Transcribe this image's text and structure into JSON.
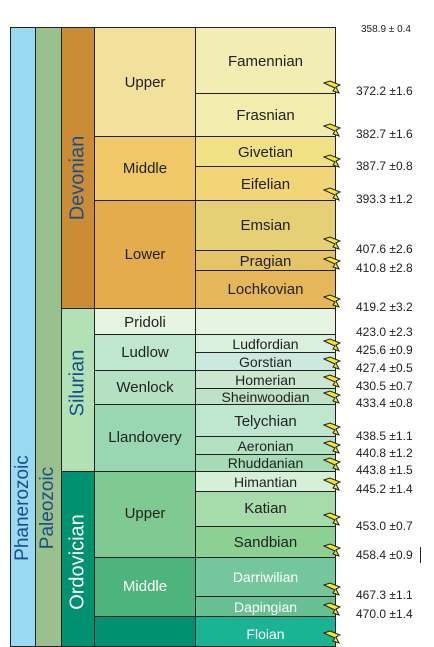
{
  "eonothem": "Phanerozoic",
  "erathem": "Paleozoic",
  "systems": [
    {
      "name": "Devonian",
      "color": "#cb8c37"
    },
    {
      "name": "Silurian",
      "color": "#b3e1b6"
    },
    {
      "name": "Ordovician",
      "color": "#009270"
    }
  ],
  "series": [
    {
      "name": "Upper",
      "color": "#f1e19d"
    },
    {
      "name": "Middle",
      "color": "#f1c868"
    },
    {
      "name": "Lower",
      "color": "#e5ac4d"
    },
    {
      "name": "Pridoli",
      "color": "#e6f5e1"
    },
    {
      "name": "Ludlow",
      "color": "#bfe6cf"
    },
    {
      "name": "Wenlock",
      "color": "#b3e1c2"
    },
    {
      "name": "Llandovery",
      "color": "#99d7b3"
    },
    {
      "name": "Upper",
      "color": "#7fca93"
    },
    {
      "name": "Middle",
      "color": "#4db47e"
    }
  ],
  "stages": [
    {
      "name": "Famennian",
      "color": "#f2edb3"
    },
    {
      "name": "Frasnian",
      "color": "#f2edad"
    },
    {
      "name": "Givetian",
      "color": "#f1e185"
    },
    {
      "name": "Eifelian",
      "color": "#f1d576"
    },
    {
      "name": "Emsian",
      "color": "#e5d075"
    },
    {
      "name": "Pragian",
      "color": "#e5c468"
    },
    {
      "name": "Lochkovian",
      "color": "#e5b75a"
    },
    {
      "name": "",
      "color": "#e6f5e1"
    },
    {
      "name": "Ludfordian",
      "color": "#d9f0df"
    },
    {
      "name": "Gorstian",
      "color": "#cce9df"
    },
    {
      "name": "Homerian",
      "color": "#cce6d0"
    },
    {
      "name": "Sheinwoodian",
      "color": "#bfe1c6"
    },
    {
      "name": "Telychian",
      "color": "#bfe6cf"
    },
    {
      "name": "Aeronian",
      "color": "#b3e1c2"
    },
    {
      "name": "Rhuddanian",
      "color": "#a6dcb5"
    },
    {
      "name": "Himantian",
      "color": "#d6f0d8"
    },
    {
      "name": "Katian",
      "color": "#a6dbab"
    },
    {
      "name": "Sandbian",
      "color": "#8cd094"
    },
    {
      "name": "Darriwilian",
      "color": "#74c69c"
    },
    {
      "name": "Dapingian",
      "color": "#66c092"
    },
    {
      "name": "Floian",
      "color": "#1ab394"
    }
  ],
  "ages": [
    "358.9 ± 0.4",
    "372.2 ±1.6",
    "382.7 ±1.6",
    "387.7 ±0.8",
    "393.3 ±1.2",
    "407.6 ±2.6",
    "410.8 ±2.8",
    "419.2 ±3.2",
    "423.0 ±2.3",
    "425.6 ±0.9",
    "427.4 ±0.5",
    "430.5 ±0.7",
    "433.4 ±0.8",
    "438.5 ±1.1",
    "440.8 ±1.2",
    "443.8 ±1.5",
    "445.2 ±1.4",
    "453.0 ±0.7",
    "458.4 ±0.9",
    "467.3 ±1.1",
    "470.0 ±1.4"
  ],
  "colors": {
    "eonothem": "#9ad9f2",
    "erathem": "#99c08d",
    "gssp_flag": "#f5e52a"
  }
}
